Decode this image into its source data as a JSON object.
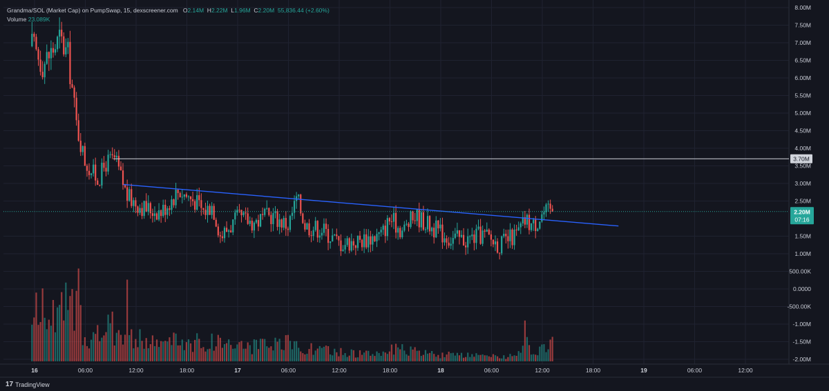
{
  "legend": {
    "symbol": "Grandma/SOL (Market Cap) on PumpSwap, 15, dexscreener.com",
    "o_label": "O",
    "o_value": "2.14M",
    "h_label": "H",
    "h_value": "2.22M",
    "l_label": "L",
    "l_value": "1.96M",
    "c_label": "C",
    "c_value": "2.20M",
    "change": "55,836.44 (+2.60%)",
    "volume_label": "Volume",
    "volume_value": "23.089K"
  },
  "footer": {
    "brand": "TradingView",
    "logo_glyph": "17"
  },
  "colors": {
    "background": "#14161f",
    "up": "#26a69a",
    "down": "#ef5350",
    "trendline": "#2962ff",
    "level_line": "#d1d4dc",
    "grid": "#1f2230"
  },
  "chart_data": {
    "type": "candlestick",
    "title": "Grandma/SOL (Market Cap) on PumpSwap, 15, dexscreener.com",
    "interval": "15",
    "y_ticks": [
      "8.00M",
      "7.50M",
      "7.00M",
      "6.50M",
      "6.00M",
      "5.50M",
      "5.00M",
      "4.50M",
      "4.00M",
      "3.50M",
      "3.00M",
      "2.50M",
      "1.50M",
      "1.00M",
      "500.00K",
      "0.0000",
      "-500.00K",
      "-1.00M",
      "-1.50M",
      "-2.00M"
    ],
    "y_tick_values": [
      8.0,
      7.5,
      7.0,
      6.5,
      6.0,
      5.5,
      5.0,
      4.5,
      4.0,
      3.5,
      3.0,
      2.5,
      1.5,
      1.0,
      0.5,
      0.0,
      -0.5,
      -1.0,
      -1.5,
      -2.0
    ],
    "ylim": [
      -2.0,
      8.0
    ],
    "x_ticks": [
      "16",
      "06:00",
      "12:00",
      "18:00",
      "17",
      "06:00",
      "12:00",
      "18:00",
      "18",
      "06:00",
      "12:00",
      "18:00",
      "19",
      "06:00",
      "12:00"
    ],
    "x_tick_hours": [
      0,
      6,
      12,
      18,
      24,
      30,
      36,
      42,
      48,
      54,
      60,
      66,
      72,
      78,
      84
    ],
    "price_label": {
      "value": "2.20M",
      "countdown": "07:16",
      "price": 2.2
    },
    "horizontal_level": {
      "value_label": "3.70M",
      "price": 3.7
    },
    "trendline": {
      "start": {
        "hour": 10.5,
        "price": 2.97
      },
      "end": {
        "hour": 69.0,
        "price": 1.79
      }
    },
    "candle_anchor_prices": [
      [
        -0.3,
        6.9
      ],
      [
        1,
        6.4
      ],
      [
        3,
        7.1
      ],
      [
        4,
        6.6
      ],
      [
        5,
        4.6
      ],
      [
        6,
        3.6
      ],
      [
        7.5,
        3.1
      ],
      [
        8.5,
        3.6
      ],
      [
        9.5,
        3.7
      ],
      [
        11,
        2.6
      ],
      [
        13,
        2.3
      ],
      [
        15,
        2.2
      ],
      [
        17,
        2.8
      ],
      [
        19,
        2.5
      ],
      [
        20,
        2.2
      ],
      [
        21,
        2.4
      ],
      [
        22,
        1.5
      ],
      [
        24,
        2.0
      ],
      [
        26,
        1.9
      ],
      [
        28,
        2.1
      ],
      [
        30,
        1.8
      ],
      [
        31,
        2.6
      ],
      [
        32,
        1.8
      ],
      [
        34,
        1.7
      ],
      [
        36,
        1.3
      ],
      [
        38,
        1.35
      ],
      [
        41,
        1.55
      ],
      [
        42,
        2.0
      ],
      [
        43.5,
        1.65
      ],
      [
        45,
        2.1
      ],
      [
        47,
        1.75
      ],
      [
        49,
        1.45
      ],
      [
        51,
        1.4
      ],
      [
        53,
        1.55
      ],
      [
        55,
        1.25
      ],
      [
        57,
        1.55
      ],
      [
        58,
        1.95
      ],
      [
        59,
        1.8
      ],
      [
        60,
        2.15
      ],
      [
        61,
        2.2
      ]
    ],
    "volume_profile": [
      [
        -0.3,
        0.7
      ],
      [
        1,
        0.9
      ],
      [
        3,
        0.7
      ],
      [
        4,
        1.0
      ],
      [
        5,
        0.9
      ],
      [
        6,
        0.5
      ],
      [
        7,
        0.4
      ],
      [
        8,
        0.5
      ],
      [
        10,
        0.6
      ],
      [
        11,
        0.4
      ],
      [
        14,
        0.3
      ],
      [
        17,
        0.35
      ],
      [
        20,
        0.3
      ],
      [
        22,
        0.35
      ],
      [
        25,
        0.25
      ],
      [
        28,
        0.25
      ],
      [
        30,
        0.3
      ],
      [
        33,
        0.2
      ],
      [
        36,
        0.15
      ],
      [
        40,
        0.12
      ],
      [
        42,
        0.2
      ],
      [
        44,
        0.18
      ],
      [
        47,
        0.12
      ],
      [
        50,
        0.1
      ],
      [
        54,
        0.08
      ],
      [
        56,
        0.08
      ],
      [
        58,
        0.3
      ],
      [
        59,
        0.15
      ],
      [
        60,
        0.2
      ],
      [
        61,
        0.3
      ]
    ],
    "volume_spikes": [
      [
        5.2,
        1.25
      ],
      [
        11.0,
        1.1
      ],
      [
        5.0,
        0.95
      ],
      [
        4.2,
        0.88
      ],
      [
        58.0,
        0.55
      ],
      [
        61.2,
        0.33
      ]
    ],
    "volume_axis_max": 1.3
  }
}
